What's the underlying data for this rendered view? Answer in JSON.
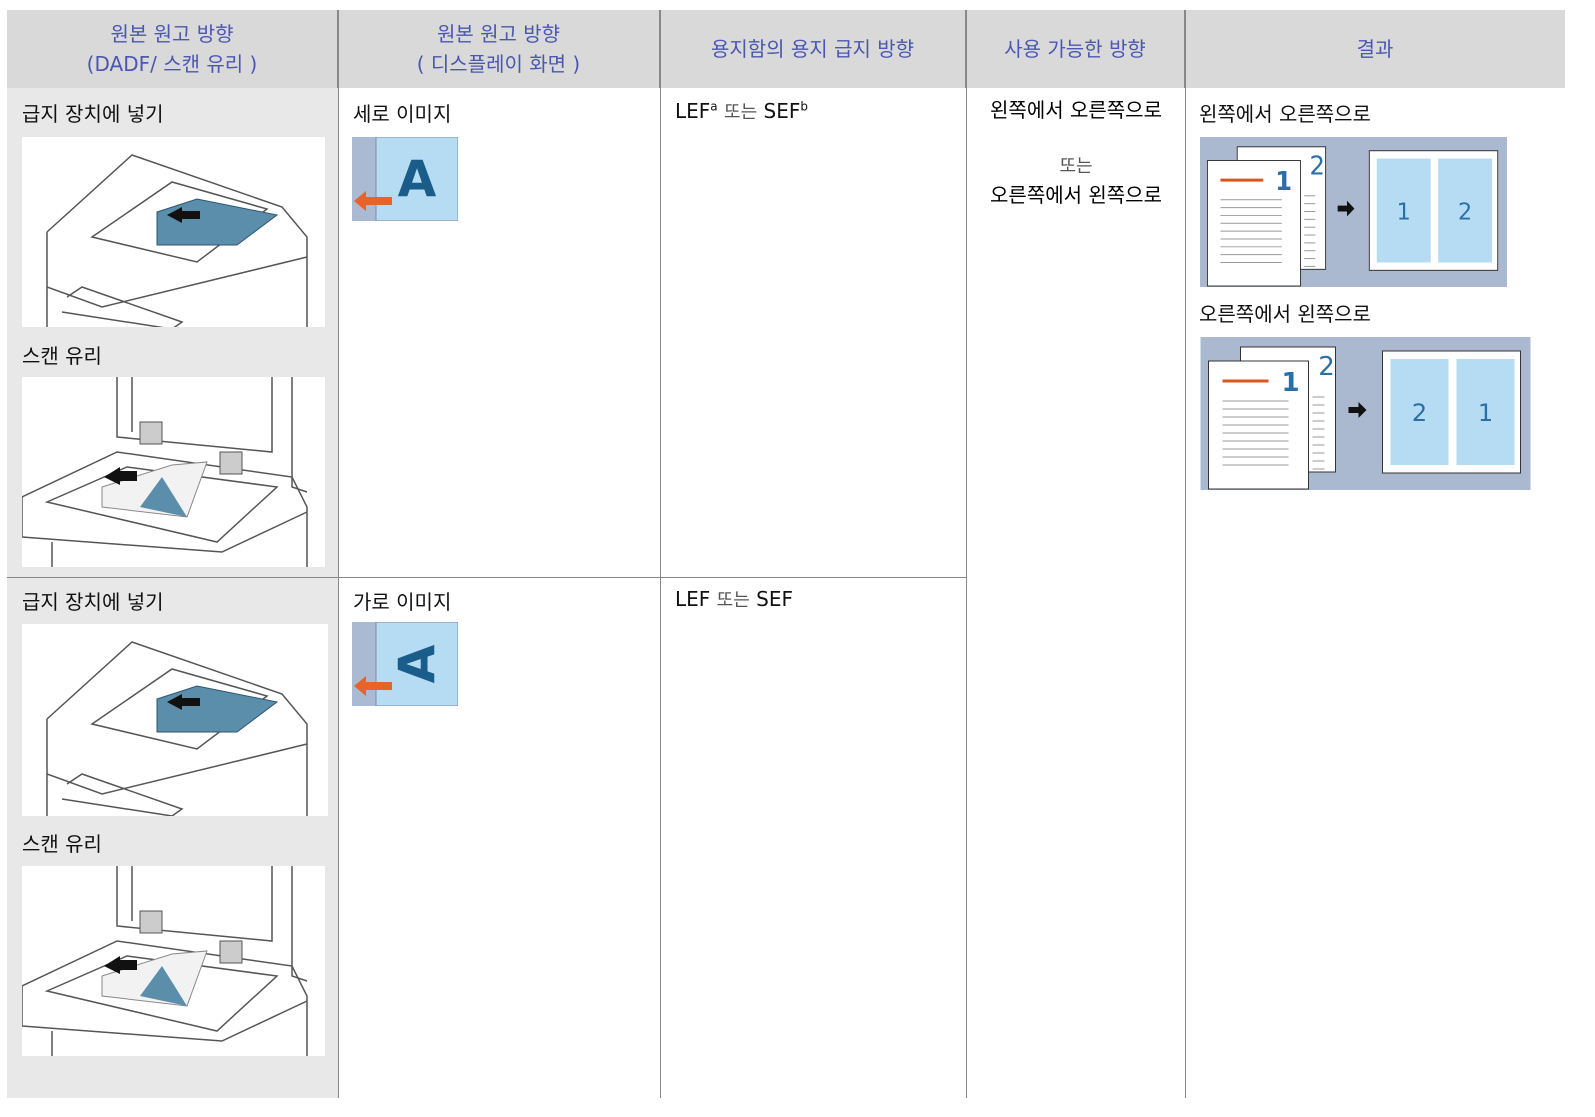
{
  "table": {
    "header": [
      {
        "lines": [
          "원본 원고 방향",
          "(DADF/ 스캔 유리 )"
        ]
      },
      {
        "lines": [
          "원본 원고 방향",
          "( 디스플레이 화면 )"
        ]
      },
      {
        "lines": [
          "용지함의 용지 급지 방향"
        ]
      },
      {
        "lines": [
          "사용 가능한 방향"
        ]
      },
      {
        "lines": [
          "결과"
        ]
      }
    ],
    "rows": [
      {
        "placement": [
          "급지 장치에 넣기",
          "스캔 유리"
        ],
        "orientation": "세로 이미지",
        "icon_letter": "A",
        "feed": [
          {
            "text": "LEF",
            "sup": "a"
          },
          {
            "text": "또는"
          },
          {
            "text": "SEF",
            "sup": "b"
          }
        ]
      },
      {
        "placement": [
          "급지 장치에 넣기",
          "스캔 유리"
        ],
        "orientation": "가로 이미지",
        "icon_letter": "A",
        "feed": [
          {
            "text": "LEF"
          },
          {
            "text": "또는"
          },
          {
            "text": "SEF"
          }
        ]
      }
    ],
    "directions": [
      "왼쪽에서 오른쪽으로",
      "또는",
      "오른쪽에서 왼쪽으로"
    ],
    "results": [
      {
        "label": "왼쪽에서 오른쪽으로",
        "pages": [
          "1",
          "2"
        ],
        "result": [
          "1",
          "2"
        ]
      },
      {
        "label": "오른쪽에서 왼쪽으로",
        "pages": [
          "1",
          "2"
        ],
        "result": [
          "2",
          "1"
        ]
      }
    ]
  }
}
